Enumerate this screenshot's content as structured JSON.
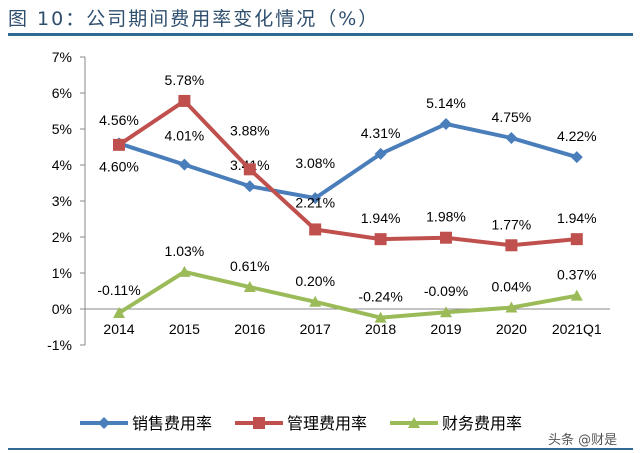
{
  "title": "图 10：公司期间费用率变化情况（%）",
  "watermark": "头条 @财是",
  "chart_data": {
    "type": "line",
    "categories": [
      "2014",
      "2015",
      "2016",
      "2017",
      "2018",
      "2019",
      "2020",
      "2021Q1"
    ],
    "ylim": [
      -1,
      7
    ],
    "yticks": [
      "-1%",
      "0%",
      "1%",
      "2%",
      "3%",
      "4%",
      "5%",
      "6%",
      "7%"
    ],
    "grid": false,
    "legend_position": "bottom",
    "series": [
      {
        "name": "销售费用率",
        "color": "#4a7ebb",
        "marker": "diamond",
        "values": [
          4.6,
          4.01,
          3.41,
          3.08,
          4.31,
          5.14,
          4.75,
          4.22
        ],
        "labels": [
          "4.60%",
          "4.01%",
          "3.41%",
          "3.08%",
          "4.31%",
          "5.14%",
          "4.75%",
          "4.22%"
        ]
      },
      {
        "name": "管理费用率",
        "color": "#c0504d",
        "marker": "square",
        "values": [
          4.56,
          5.78,
          3.88,
          2.21,
          1.94,
          1.98,
          1.77,
          1.94
        ],
        "labels": [
          "4.56%",
          "5.78%",
          "3.88%",
          "2.21%",
          "1.94%",
          "1.98%",
          "1.77%",
          "1.94%"
        ]
      },
      {
        "name": "财务费用率",
        "color": "#9bbb59",
        "marker": "triangle",
        "values": [
          -0.11,
          1.03,
          0.61,
          0.2,
          -0.24,
          -0.09,
          0.04,
          0.37
        ],
        "labels": [
          "-0.11%",
          "1.03%",
          "0.61%",
          "0.20%",
          "-0.24%",
          "-0.09%",
          "0.04%",
          "0.37%"
        ]
      }
    ]
  }
}
